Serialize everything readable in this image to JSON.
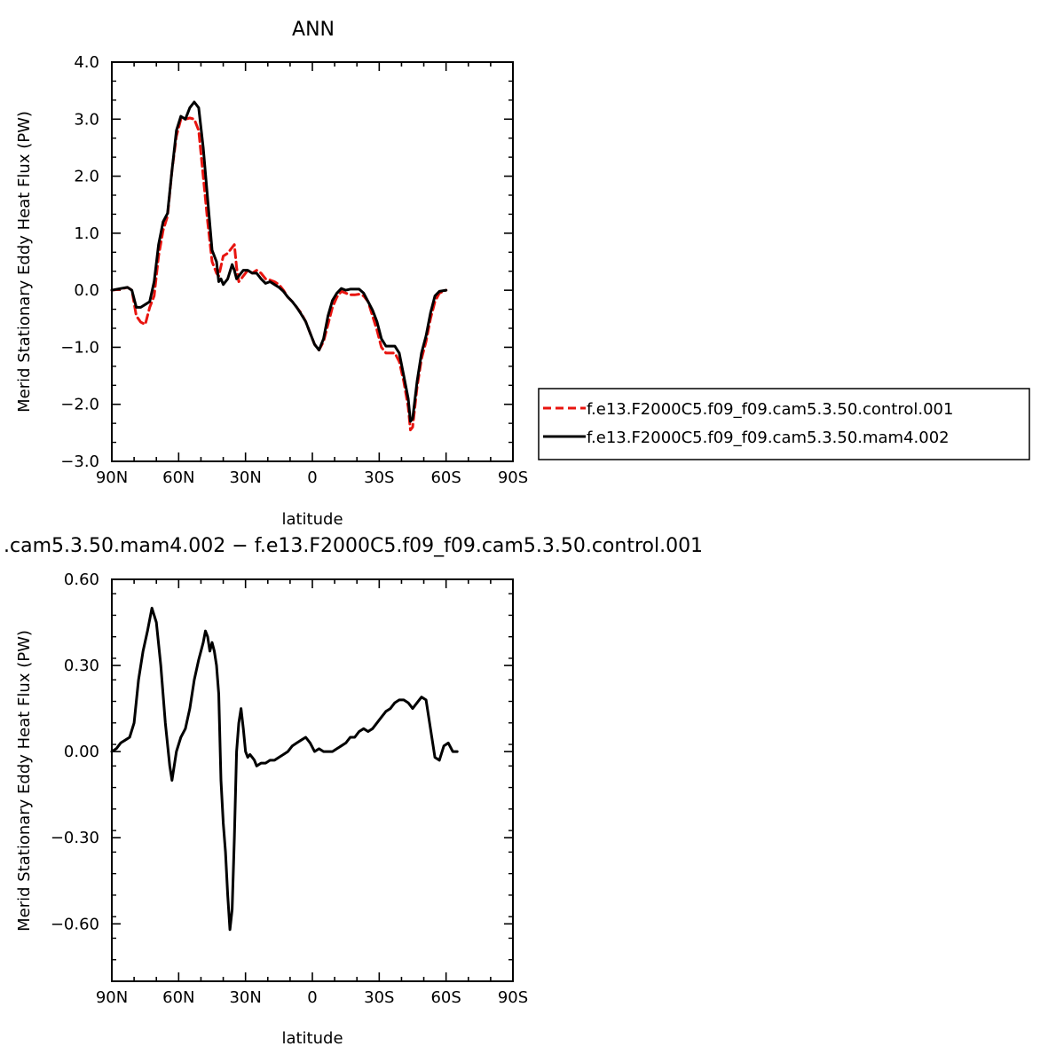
{
  "figure": {
    "top_title": "ANN",
    "bottom_title": ".cam5.3.50.mam4.002 − f.e13.F2000C5.f09_f09.cam5.3.50.control.001"
  },
  "chart_data": [
    {
      "type": "line",
      "title": "ANN",
      "xlabel": "latitude",
      "ylabel": "Merid Stationary Eddy Heat Flux (PW)",
      "x_ticks": [
        "90N",
        "60N",
        "30N",
        "0",
        "30S",
        "60S",
        "90S"
      ],
      "x_range": [
        90,
        -90
      ],
      "y_ticks": [
        "4.0",
        "3.0",
        "2.0",
        "1.0",
        "0.0",
        "−1.0",
        "−2.0",
        "−3.0"
      ],
      "ylim": [
        -3,
        4
      ],
      "legend_position": "right",
      "series": [
        {
          "name": "f.e13.F2000C5.f09_f09.cam5.3.50.control.001",
          "color": "#e8140f",
          "style": "dashed",
          "points": [
            [
              90,
              0
            ],
            [
              86,
              0.02
            ],
            [
              83,
              0.05
            ],
            [
              81,
              0
            ],
            [
              79,
              -0.45
            ],
            [
              77,
              -0.56
            ],
            [
              75,
              -0.6
            ],
            [
              73,
              -0.3
            ],
            [
              71,
              -0.1
            ],
            [
              69,
              0.6
            ],
            [
              67,
              1.05
            ],
            [
              65,
              1.3
            ],
            [
              63,
              2.1
            ],
            [
              61,
              2.7
            ],
            [
              59,
              3.0
            ],
            [
              57,
              3.0
            ],
            [
              55,
              3.02
            ],
            [
              53,
              3.0
            ],
            [
              51,
              2.8
            ],
            [
              49,
              2.0
            ],
            [
              47,
              1.2
            ],
            [
              45,
              0.5
            ],
            [
              43,
              0.3
            ],
            [
              42,
              0.25
            ],
            [
              40,
              0.6
            ],
            [
              38,
              0.65
            ],
            [
              36,
              0.75
            ],
            [
              35,
              0.8
            ],
            [
              34,
              0.4
            ],
            [
              33,
              0.15
            ],
            [
              31,
              0.25
            ],
            [
              29,
              0.35
            ],
            [
              27,
              0.3
            ],
            [
              25,
              0.35
            ],
            [
              23,
              0.3
            ],
            [
              21,
              0.2
            ],
            [
              19,
              0.18
            ],
            [
              17,
              0.15
            ],
            [
              15,
              0.1
            ],
            [
              13,
              0.0
            ],
            [
              11,
              -0.12
            ],
            [
              9,
              -0.2
            ],
            [
              7,
              -0.3
            ],
            [
              5,
              -0.4
            ],
            [
              3,
              -0.55
            ],
            [
              1,
              -0.75
            ],
            [
              -1,
              -0.95
            ],
            [
              -3,
              -1.05
            ],
            [
              -5,
              -0.9
            ],
            [
              -7,
              -0.6
            ],
            [
              -9,
              -0.3
            ],
            [
              -11,
              -0.12
            ],
            [
              -13,
              -0.02
            ],
            [
              -15,
              -0.05
            ],
            [
              -17,
              -0.08
            ],
            [
              -19,
              -0.08
            ],
            [
              -21,
              -0.07
            ],
            [
              -23,
              -0.1
            ],
            [
              -25,
              -0.2
            ],
            [
              -27,
              -0.45
            ],
            [
              -29,
              -0.7
            ],
            [
              -31,
              -1.0
            ],
            [
              -33,
              -1.1
            ],
            [
              -35,
              -1.1
            ],
            [
              -37,
              -1.1
            ],
            [
              -39,
              -1.25
            ],
            [
              -41,
              -1.6
            ],
            [
              -43,
              -2.05
            ],
            [
              -44,
              -2.45
            ],
            [
              -45,
              -2.4
            ],
            [
              -47,
              -1.7
            ],
            [
              -49,
              -1.2
            ],
            [
              -51,
              -0.9
            ],
            [
              -53,
              -0.5
            ],
            [
              -55,
              -0.2
            ],
            [
              -57,
              -0.05
            ],
            [
              -60,
              0
            ]
          ]
        },
        {
          "name": "f.e13.F2000C5.f09_f09.cam5.3.50.mam4.002",
          "color": "#000000",
          "style": "solid",
          "points": [
            [
              90,
              0
            ],
            [
              86,
              0.03
            ],
            [
              83,
              0.05
            ],
            [
              81,
              0
            ],
            [
              79,
              -0.3
            ],
            [
              77,
              -0.3
            ],
            [
              75,
              -0.25
            ],
            [
              73,
              -0.2
            ],
            [
              71,
              0.15
            ],
            [
              69,
              0.8
            ],
            [
              67,
              1.2
            ],
            [
              65,
              1.35
            ],
            [
              63,
              2.1
            ],
            [
              61,
              2.8
            ],
            [
              59,
              3.05
            ],
            [
              57,
              3.0
            ],
            [
              55,
              3.2
            ],
            [
              53,
              3.3
            ],
            [
              51,
              3.2
            ],
            [
              49,
              2.5
            ],
            [
              47,
              1.6
            ],
            [
              45,
              0.7
            ],
            [
              43,
              0.5
            ],
            [
              42,
              0.15
            ],
            [
              41,
              0.2
            ],
            [
              40,
              0.1
            ],
            [
              38,
              0.2
            ],
            [
              36,
              0.45
            ],
            [
              35,
              0.35
            ],
            [
              34,
              0.2
            ],
            [
              33,
              0.25
            ],
            [
              31,
              0.35
            ],
            [
              29,
              0.35
            ],
            [
              27,
              0.3
            ],
            [
              25,
              0.3
            ],
            [
              23,
              0.2
            ],
            [
              21,
              0.12
            ],
            [
              19,
              0.15
            ],
            [
              17,
              0.1
            ],
            [
              15,
              0.05
            ],
            [
              13,
              -0.02
            ],
            [
              11,
              -0.12
            ],
            [
              9,
              -0.2
            ],
            [
              7,
              -0.3
            ],
            [
              5,
              -0.42
            ],
            [
              3,
              -0.55
            ],
            [
              1,
              -0.75
            ],
            [
              -1,
              -0.95
            ],
            [
              -3,
              -1.05
            ],
            [
              -5,
              -0.85
            ],
            [
              -7,
              -0.45
            ],
            [
              -9,
              -0.18
            ],
            [
              -11,
              -0.05
            ],
            [
              -13,
              0.03
            ],
            [
              -15,
              0.0
            ],
            [
              -17,
              0.02
            ],
            [
              -19,
              0.02
            ],
            [
              -21,
              0.02
            ],
            [
              -23,
              -0.05
            ],
            [
              -25,
              -0.2
            ],
            [
              -27,
              -0.35
            ],
            [
              -29,
              -0.55
            ],
            [
              -31,
              -0.85
            ],
            [
              -33,
              -0.98
            ],
            [
              -35,
              -0.98
            ],
            [
              -37,
              -0.98
            ],
            [
              -39,
              -1.1
            ],
            [
              -41,
              -1.5
            ],
            [
              -43,
              -1.9
            ],
            [
              -44,
              -2.3
            ],
            [
              -45,
              -2.25
            ],
            [
              -47,
              -1.6
            ],
            [
              -49,
              -1.1
            ],
            [
              -51,
              -0.8
            ],
            [
              -53,
              -0.4
            ],
            [
              -55,
              -0.1
            ],
            [
              -57,
              -0.02
            ],
            [
              -60,
              0
            ]
          ]
        }
      ]
    },
    {
      "type": "line",
      "title": ".cam5.3.50.mam4.002 − f.e13.F2000C5.f09_f09.cam5.3.50.control.001",
      "xlabel": "latitude",
      "ylabel": "Merid Stationary Eddy Heat Flux (PW)",
      "x_ticks": [
        "90N",
        "60N",
        "30N",
        "0",
        "30S",
        "60S",
        "90S"
      ],
      "x_range": [
        90,
        -90
      ],
      "y_ticks": [
        "0.60",
        "0.30",
        "0.00",
        "−0.30",
        "−0.60"
      ],
      "ylim": [
        -0.8,
        0.6
      ],
      "series": [
        {
          "color": "#000000",
          "style": "solid",
          "points": [
            [
              90,
              0
            ],
            [
              88,
              0.01
            ],
            [
              86,
              0.03
            ],
            [
              84,
              0.04
            ],
            [
              82,
              0.05
            ],
            [
              80,
              0.1
            ],
            [
              78,
              0.25
            ],
            [
              76,
              0.35
            ],
            [
              74,
              0.42
            ],
            [
              72,
              0.5
            ],
            [
              70,
              0.45
            ],
            [
              68,
              0.3
            ],
            [
              66,
              0.1
            ],
            [
              64,
              -0.05
            ],
            [
              63,
              -0.1
            ],
            [
              61,
              0.0
            ],
            [
              59,
              0.05
            ],
            [
              57,
              0.08
            ],
            [
              55,
              0.15
            ],
            [
              53,
              0.25
            ],
            [
              51,
              0.32
            ],
            [
              49,
              0.38
            ],
            [
              48,
              0.42
            ],
            [
              47,
              0.4
            ],
            [
              46,
              0.35
            ],
            [
              45,
              0.38
            ],
            [
              44,
              0.35
            ],
            [
              43,
              0.3
            ],
            [
              42,
              0.2
            ],
            [
              41,
              -0.1
            ],
            [
              40,
              -0.25
            ],
            [
              39,
              -0.35
            ],
            [
              38,
              -0.5
            ],
            [
              37,
              -0.62
            ],
            [
              36,
              -0.55
            ],
            [
              35,
              -0.3
            ],
            [
              34,
              0.0
            ],
            [
              33,
              0.1
            ],
            [
              32,
              0.15
            ],
            [
              31,
              0.08
            ],
            [
              30,
              0.0
            ],
            [
              29,
              -0.02
            ],
            [
              28,
              -0.01
            ],
            [
              27,
              -0.02
            ],
            [
              26,
              -0.03
            ],
            [
              25,
              -0.05
            ],
            [
              23,
              -0.04
            ],
            [
              21,
              -0.04
            ],
            [
              19,
              -0.03
            ],
            [
              17,
              -0.03
            ],
            [
              15,
              -0.02
            ],
            [
              13,
              -0.01
            ],
            [
              11,
              0.0
            ],
            [
              9,
              0.02
            ],
            [
              7,
              0.03
            ],
            [
              5,
              0.04
            ],
            [
              3,
              0.05
            ],
            [
              1,
              0.03
            ],
            [
              -1,
              0.0
            ],
            [
              -3,
              0.01
            ],
            [
              -5,
              0.0
            ],
            [
              -7,
              0.0
            ],
            [
              -9,
              0.0
            ],
            [
              -11,
              0.01
            ],
            [
              -13,
              0.02
            ],
            [
              -15,
              0.03
            ],
            [
              -17,
              0.05
            ],
            [
              -19,
              0.05
            ],
            [
              -21,
              0.07
            ],
            [
              -23,
              0.08
            ],
            [
              -25,
              0.07
            ],
            [
              -27,
              0.08
            ],
            [
              -29,
              0.1
            ],
            [
              -31,
              0.12
            ],
            [
              -33,
              0.14
            ],
            [
              -35,
              0.15
            ],
            [
              -37,
              0.17
            ],
            [
              -39,
              0.18
            ],
            [
              -41,
              0.18
            ],
            [
              -43,
              0.17
            ],
            [
              -45,
              0.15
            ],
            [
              -47,
              0.17
            ],
            [
              -49,
              0.19
            ],
            [
              -51,
              0.18
            ],
            [
              -53,
              0.08
            ],
            [
              -55,
              -0.02
            ],
            [
              -57,
              -0.03
            ],
            [
              -59,
              0.02
            ],
            [
              -61,
              0.03
            ],
            [
              -63,
              0.0
            ],
            [
              -65,
              0.0
            ]
          ]
        }
      ]
    }
  ]
}
